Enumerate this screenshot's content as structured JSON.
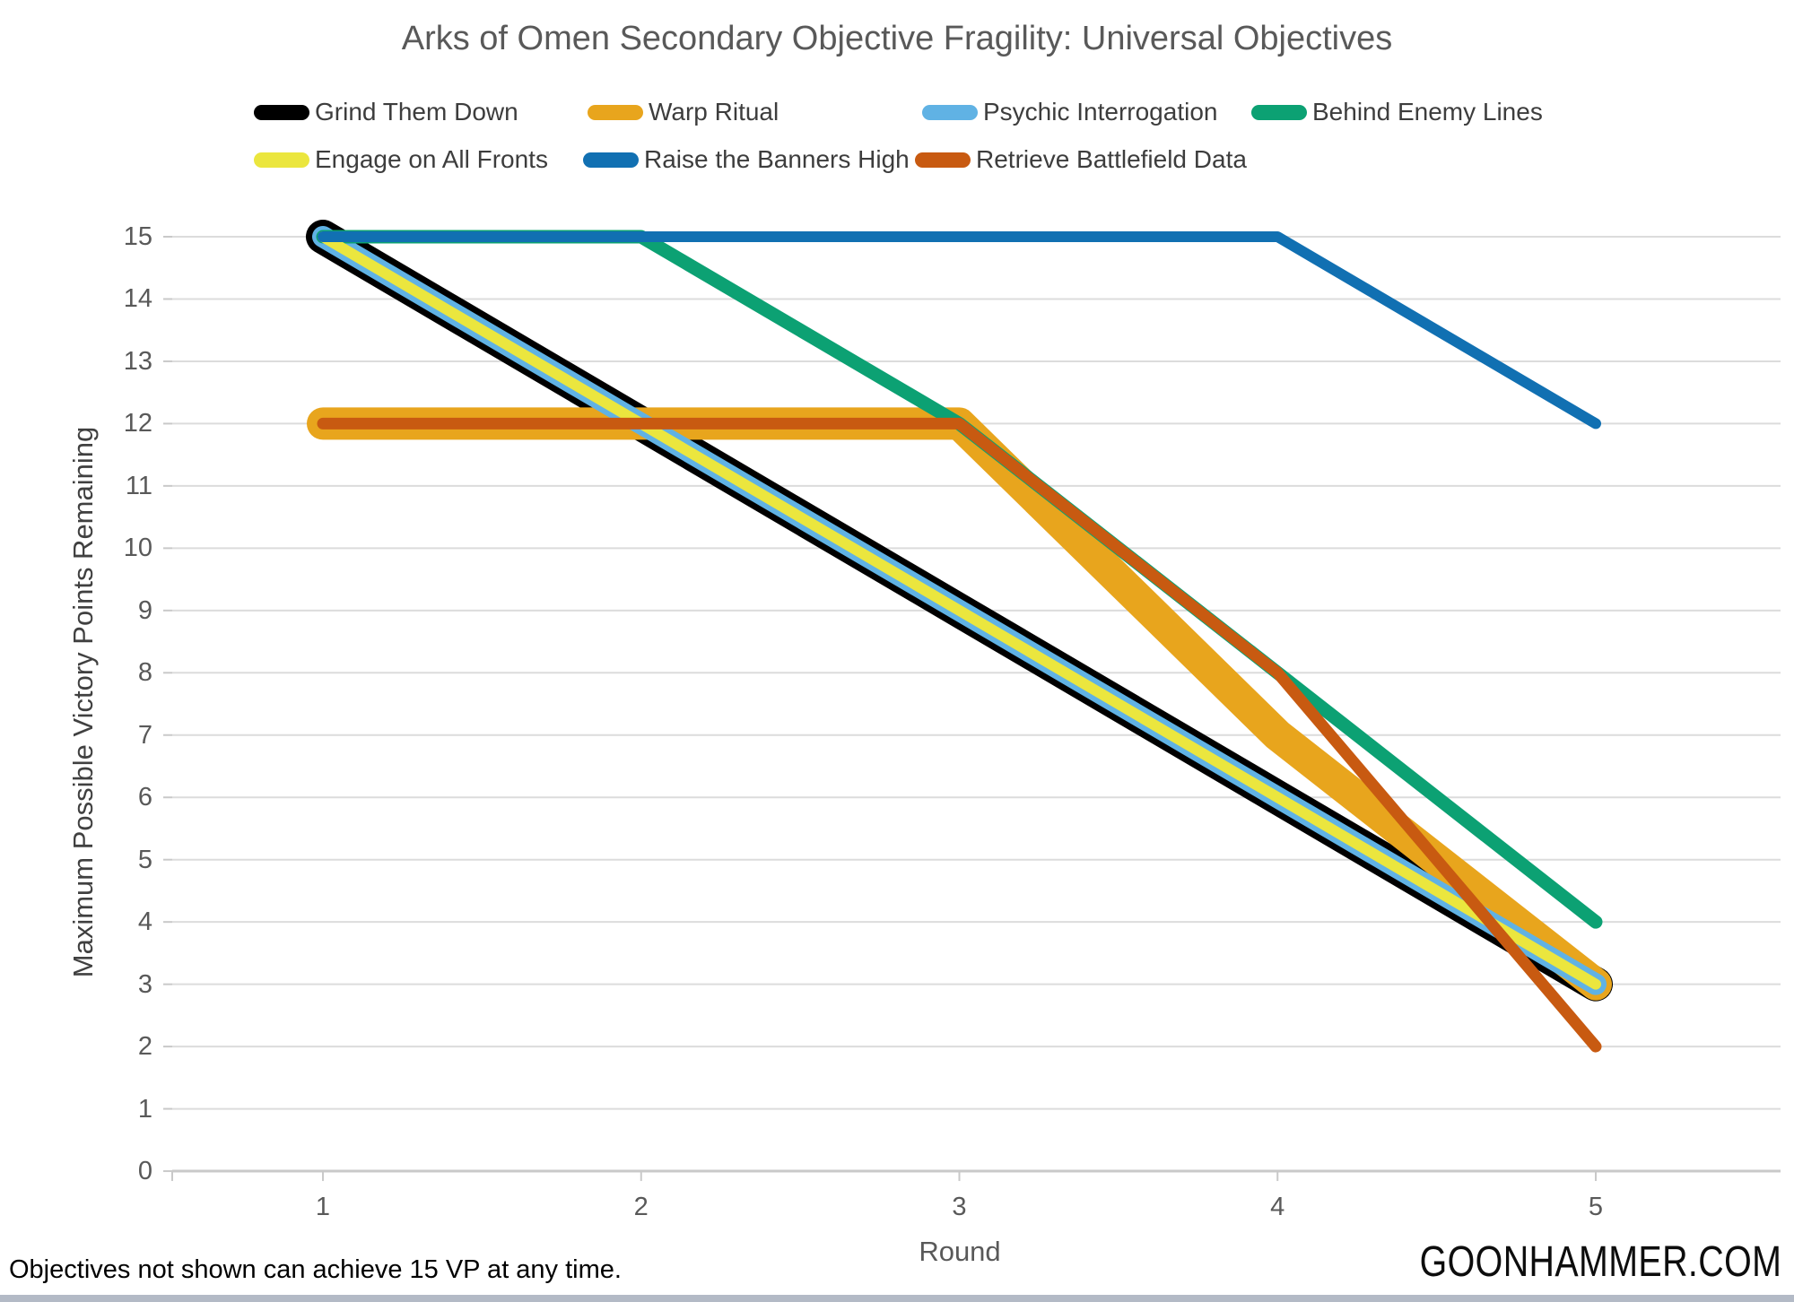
{
  "title": "Arks of Omen Secondary Objective Fragility: Universal Objectives",
  "footnote": "Objectives not shown can achieve 15 VP at any time.",
  "watermark": "GOONHAMMER.COM",
  "legend": {
    "rows": [
      [
        0,
        1,
        2,
        3
      ],
      [
        4,
        5,
        6
      ]
    ]
  },
  "chart_data": {
    "type": "line",
    "title": "Arks of Omen Secondary Objective Fragility: Universal Objectives",
    "xlabel": "Round",
    "ylabel": "Maximum Possible Victory Points Remaining",
    "x": [
      1,
      2,
      3,
      4,
      5
    ],
    "ylim": [
      0,
      15
    ],
    "y_ticks": [
      0,
      1,
      2,
      3,
      4,
      5,
      6,
      7,
      8,
      9,
      10,
      11,
      12,
      13,
      14,
      15
    ],
    "grid": "horizontal",
    "legend_position": "top",
    "colors": {
      "gridline": "#dcdcdc",
      "axis_line": "#c9c9c9",
      "tick_mark": "#c9c9c9"
    },
    "series": [
      {
        "name": "Grind Them Down",
        "color": "#000000",
        "stroke_width": 38,
        "values": [
          15,
          12,
          9,
          6,
          3
        ]
      },
      {
        "name": "Warp Ritual",
        "color": "#e8a51d",
        "stroke_width": 36,
        "values": [
          12,
          12,
          12,
          7,
          3
        ]
      },
      {
        "name": "Psychic Interrogation",
        "color": "#60b2e4",
        "stroke_width": 24,
        "values": [
          15,
          12,
          9,
          6,
          3
        ]
      },
      {
        "name": "Behind Enemy Lines",
        "color": "#0ca173",
        "stroke_width": 15,
        "values": [
          15,
          15,
          12,
          8,
          4
        ]
      },
      {
        "name": "Engage on All Fronts",
        "color": "#ebe63e",
        "stroke_width": 12,
        "values": [
          15,
          12,
          9,
          6,
          3
        ]
      },
      {
        "name": "Raise the Banners High",
        "color": "#1170b2",
        "stroke_width": 12,
        "values": [
          15,
          15,
          15,
          15,
          12
        ]
      },
      {
        "name": "Retrieve Battlefield Data",
        "color": "#c85a11",
        "stroke_width": 13,
        "values": [
          12,
          12,
          12,
          8,
          2
        ]
      }
    ]
  }
}
